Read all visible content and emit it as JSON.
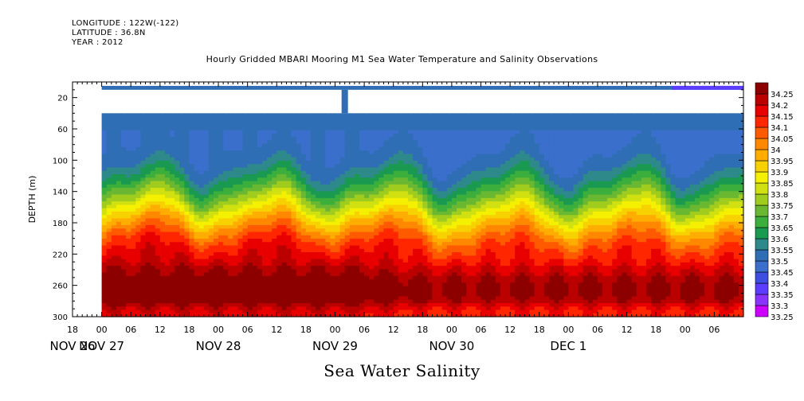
{
  "meta": {
    "longitude": "LONGITUDE : 122W(-122)",
    "latitude": "LATITUDE : 36.8N",
    "year": "YEAR : 2012"
  },
  "footer_label": "Sea Water Salinity",
  "chart_data": {
    "type": "heatmap",
    "title": "Hourly Gridded MBARI Mooring M1 Sea Water Temperature and Salinity Observations",
    "ylabel": "DEPTH (m)",
    "xlabel": "",
    "yaxis": {
      "range": [
        0,
        300
      ],
      "inverted": true,
      "ticks": [
        20,
        60,
        100,
        140,
        180,
        220,
        260,
        300
      ]
    },
    "xaxis": {
      "range_hours": [
        0,
        138
      ],
      "hour_ticks": [
        {
          "h": 0,
          "label": "18"
        },
        {
          "h": 6,
          "label": "00"
        },
        {
          "h": 12,
          "label": "06"
        },
        {
          "h": 18,
          "label": "12"
        },
        {
          "h": 24,
          "label": "18"
        },
        {
          "h": 30,
          "label": "00"
        },
        {
          "h": 36,
          "label": "06"
        },
        {
          "h": 42,
          "label": "12"
        },
        {
          "h": 48,
          "label": "18"
        },
        {
          "h": 54,
          "label": "00"
        },
        {
          "h": 60,
          "label": "06"
        },
        {
          "h": 66,
          "label": "12"
        },
        {
          "h": 72,
          "label": "18"
        },
        {
          "h": 78,
          "label": "00"
        },
        {
          "h": 84,
          "label": "06"
        },
        {
          "h": 90,
          "label": "12"
        },
        {
          "h": 96,
          "label": "18"
        },
        {
          "h": 102,
          "label": "00"
        },
        {
          "h": 108,
          "label": "06"
        },
        {
          "h": 114,
          "label": "12"
        },
        {
          "h": 120,
          "label": "18"
        },
        {
          "h": 126,
          "label": "00"
        },
        {
          "h": 132,
          "label": "06"
        }
      ],
      "date_labels": [
        {
          "h": 0,
          "label": "NOV 26"
        },
        {
          "h": 6,
          "label": "NOV 27"
        },
        {
          "h": 30,
          "label": "NOV 28"
        },
        {
          "h": 54,
          "label": "NOV 29"
        },
        {
          "h": 78,
          "label": "NOV 30"
        },
        {
          "h": 102,
          "label": "DEC  1"
        }
      ]
    },
    "data_start_hour": 6,
    "data_end_hour": 138,
    "no_data_band_depth": [
      10,
      40
    ],
    "surface_depth": [
      5,
      10
    ],
    "gap_spike_hour": 56,
    "levels": [
      33.25,
      33.3,
      33.35,
      33.4,
      33.45,
      33.5,
      33.55,
      33.6,
      33.65,
      33.7,
      33.75,
      33.8,
      33.85,
      33.9,
      33.95,
      34,
      34.05,
      34.1,
      34.15,
      34.2,
      34.25
    ],
    "level_labels": [
      "33.25",
      "33.3",
      "33.35",
      "33.4",
      "33.45",
      "33.5",
      "33.55",
      "33.6",
      "33.65",
      "33.7",
      "33.75",
      "33.8",
      "33.85",
      "33.9",
      "33.95",
      "34",
      "34.05",
      "34.1",
      "34.15",
      "34.2",
      "34.25"
    ],
    "colors": [
      "#cc00ff",
      "#8a33ff",
      "#5c3dff",
      "#3d4ee0",
      "#3b6fcc",
      "#2f6eb4",
      "#2e8a8a",
      "#1a9950",
      "#3cae3c",
      "#6ab832",
      "#a0cc1e",
      "#d0e010",
      "#f5f000",
      "#f7d200",
      "#ffad00",
      "#ff8800",
      "#ff5a00",
      "#ff2600",
      "#e80000",
      "#bb0000",
      "#8c0000"
    ],
    "profile_samples": [
      {
        "hour": 12,
        "depths": [
          40,
          80,
          120,
          160,
          200,
          240,
          260,
          290
        ],
        "values": [
          33.5,
          33.6,
          33.75,
          33.9,
          34.05,
          34.15,
          34.18,
          34.1
        ]
      },
      {
        "hour": 72,
        "depths": [
          40,
          80,
          120,
          160,
          200,
          240,
          260,
          290
        ],
        "values": [
          33.5,
          33.55,
          33.6,
          33.8,
          34.0,
          34.15,
          34.2,
          34.1
        ]
      },
      {
        "hour": 114,
        "depths": [
          40,
          80,
          120,
          160,
          200,
          240,
          260,
          290
        ],
        "values": [
          33.48,
          33.5,
          33.55,
          33.7,
          33.95,
          34.12,
          34.15,
          34.08
        ]
      }
    ]
  }
}
